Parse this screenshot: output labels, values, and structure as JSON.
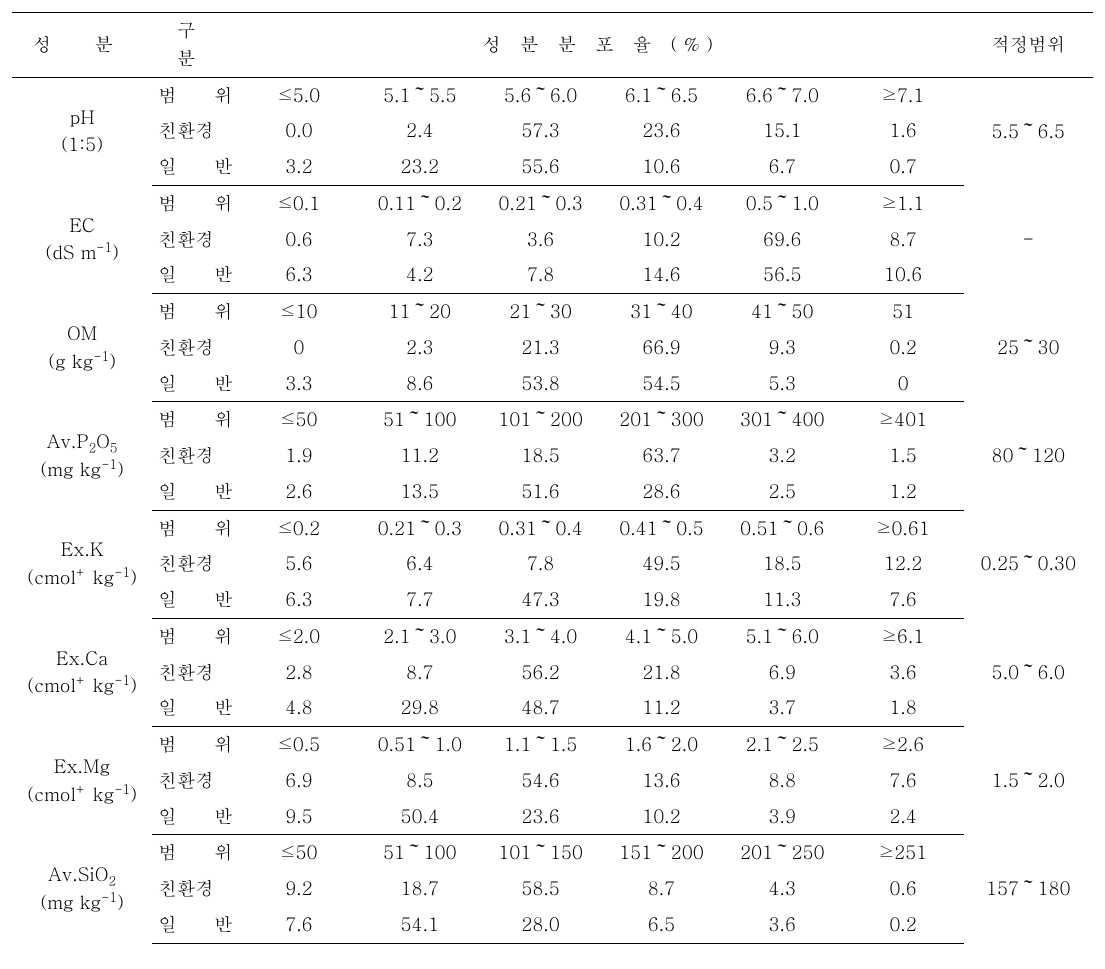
{
  "header": {
    "component": "성 분",
    "division": "구 분",
    "distribution_title": "성 분 분 포 율 (%)",
    "optimal_range": "적정범위"
  },
  "division_labels": {
    "range": "범 위",
    "eco": "친환경",
    "conv": "일 반"
  },
  "rows": [
    {
      "component_html": "pH<br>(1:5)",
      "range": [
        "≤5.0",
        "5.1～5.5",
        "5.6～6.0",
        "6.1～6.5",
        "6.6～7.0",
        "≥7.1"
      ],
      "eco": [
        "0.0",
        "2.4",
        "57.3",
        "23.6",
        "15.1",
        "1.6"
      ],
      "conv": [
        "3.2",
        "23.2",
        "55.6",
        "10.6",
        "6.7",
        "0.7"
      ],
      "optimal": "5.5～6.5"
    },
    {
      "component_html": "EC<br>(dS m<sup>-1</sup>)",
      "range": [
        "≤0.1",
        "0.11～0.2",
        "0.21～0.3",
        "0.31～0.4",
        "0.5～1.0",
        "≥1.1"
      ],
      "eco": [
        "0.6",
        "7.3",
        "3.6",
        "10.2",
        "69.6",
        "8.7"
      ],
      "conv": [
        "6.3",
        "4.2",
        "7.8",
        "14.6",
        "56.5",
        "10.6"
      ],
      "optimal": "-"
    },
    {
      "component_html": "OM<br>(g kg<sup>-1</sup>)",
      "range": [
        "≤10",
        "11～20",
        "21～30",
        "31～40",
        "41～50",
        "51"
      ],
      "eco": [
        "0",
        "2.3",
        "21.3",
        "66.9",
        "9.3",
        "0.2"
      ],
      "conv": [
        "3.3",
        "8.6",
        "53.8",
        "54.5",
        "5.3",
        "0"
      ],
      "optimal": "25～30"
    },
    {
      "component_html": "Av.P<sub>2</sub>O<sub>5</sub><br>(mg kg<sup>-1</sup>)",
      "range": [
        "≤50",
        "51～100",
        "101～200",
        "201～300",
        "301～400",
        "≥401"
      ],
      "eco": [
        "1.9",
        "11.2",
        "18.5",
        "63.7",
        "3.2",
        "1.5"
      ],
      "conv": [
        "2.6",
        "13.5",
        "51.6",
        "28.6",
        "2.5",
        "1.2"
      ],
      "optimal": "80～120"
    },
    {
      "component_html": "Ex.K<br>(cmol<sup>+</sup> kg<sup>-1</sup>)",
      "range": [
        "≤0.2",
        "0.21～0.3",
        "0.31～0.4",
        "0.41～0.5",
        "0.51～0.6",
        "≥0.61"
      ],
      "eco": [
        "5.6",
        "6.4",
        "7.8",
        "49.5",
        "18.5",
        "12.2"
      ],
      "conv": [
        "6.3",
        "7.7",
        "47.3",
        "19.8",
        "11.3",
        "7.6"
      ],
      "optimal": "0.25～0.30"
    },
    {
      "component_html": "Ex.Ca<br>(cmol<sup>+</sup> kg<sup>-1</sup>)",
      "range": [
        "≤2.0",
        "2.1～3.0",
        "3.1～4.0",
        "4.1～5.0",
        "5.1～6.0",
        "≥6.1"
      ],
      "eco": [
        "2.8",
        "8.7",
        "56.2",
        "21.8",
        "6.9",
        "3.6"
      ],
      "conv": [
        "4.8",
        "29.8",
        "48.7",
        "11.2",
        "3.7",
        "1.8"
      ],
      "optimal": "5.0～6.0"
    },
    {
      "component_html": "Ex.Mg<br>(cmol<sup>+</sup> kg<sup>-1</sup>)",
      "range": [
        "≤0.5",
        "0.51～1.0",
        "1.1～1.5",
        "1.6～2.0",
        "2.1～2.5",
        "≥2.6"
      ],
      "eco": [
        "6.9",
        "8.5",
        "54.6",
        "13.6",
        "8.8",
        "7.6"
      ],
      "conv": [
        "9.5",
        "50.4",
        "23.6",
        "10.2",
        "3.9",
        "2.4"
      ],
      "optimal": "1.5～2.0"
    },
    {
      "component_html": "Av.SiO<sub>2</sub><br>(mg kg<sup>-1</sup>)",
      "range": [
        "≤50",
        "51～100",
        "101～150",
        "151～200",
        "201～250",
        "≥251"
      ],
      "eco": [
        "9.2",
        "18.7",
        "58.5",
        "8.7",
        "4.3",
        "0.6"
      ],
      "conv": [
        "7.6",
        "54.1",
        "28.0",
        "6.5",
        "3.6",
        "0.2"
      ],
      "optimal": "157～180"
    }
  ]
}
